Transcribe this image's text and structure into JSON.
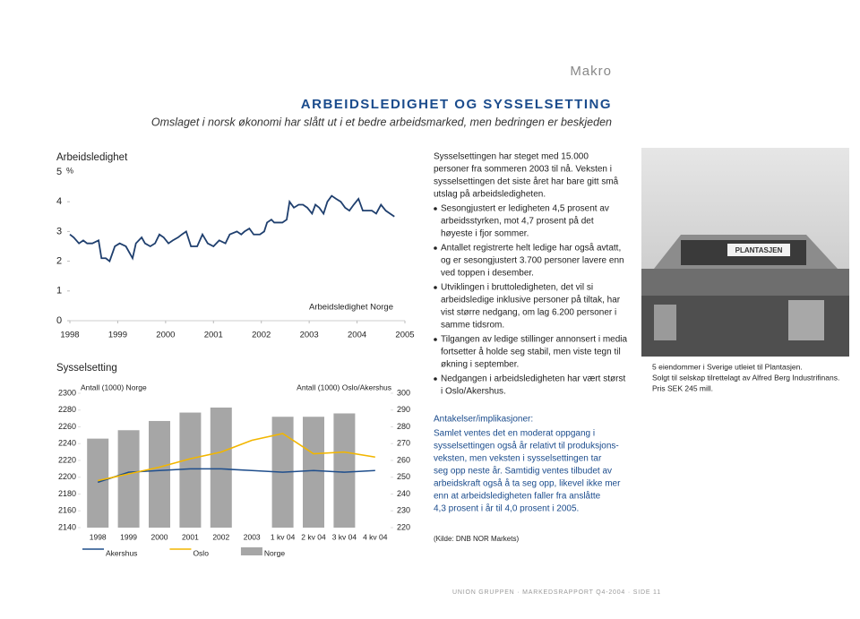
{
  "header": {
    "section": "Makro",
    "title": "ARBEIDSLEDIGHET OG SYSSELSETTING",
    "subtitle": "Omslaget i norsk økonomi har slått ut i et bedre arbeidsmarked, men bedringen er beskjeden"
  },
  "chart_data": [
    {
      "type": "line",
      "title": "Arbeidsledighet",
      "y_label": "%",
      "x": [
        1998.0,
        1998.08,
        1998.19,
        1998.28,
        1998.36,
        1998.47,
        1998.6,
        1998.66,
        1998.75,
        1998.83,
        1998.94,
        1999.04,
        1999.17,
        1999.31,
        1999.38,
        1999.5,
        1999.57,
        1999.68,
        1999.78,
        1999.87,
        1999.96,
        2000.06,
        2000.15,
        2000.26,
        2000.34,
        2000.43,
        2000.53,
        2000.66,
        2000.77,
        2000.88,
        2001.0,
        2001.12,
        2001.25,
        2001.34,
        2001.49,
        2001.58,
        2001.65,
        2001.75,
        2001.84,
        2001.97,
        2002.06,
        2002.12,
        2002.21,
        2002.27,
        2002.34,
        2002.44,
        2002.53,
        2002.59,
        2002.68,
        2002.78,
        2002.87,
        2002.96,
        2003.06,
        2003.13,
        2003.21,
        2003.3,
        2003.38,
        2003.47,
        2003.56,
        2003.66,
        2003.75,
        2003.84,
        2003.93,
        2004.03,
        2004.12,
        2004.21,
        2004.31,
        2004.4,
        2004.5,
        2004.6,
        2004.69,
        2004.78
      ],
      "series": [
        {
          "name": "Arbeidsledighet Norge",
          "color": "#1f3f6e",
          "values": [
            2.9,
            2.8,
            2.6,
            2.7,
            2.6,
            2.6,
            2.7,
            2.1,
            2.1,
            2.0,
            2.5,
            2.6,
            2.5,
            2.1,
            2.6,
            2.8,
            2.6,
            2.5,
            2.6,
            2.9,
            2.8,
            2.6,
            2.7,
            2.8,
            2.9,
            3.0,
            2.5,
            2.5,
            2.9,
            2.6,
            2.5,
            2.7,
            2.6,
            2.9,
            3.0,
            2.9,
            3.0,
            3.1,
            2.9,
            2.9,
            3.0,
            3.3,
            3.4,
            3.3,
            3.3,
            3.3,
            3.4,
            4.0,
            3.8,
            3.9,
            3.9,
            3.8,
            3.6,
            3.9,
            3.8,
            3.6,
            4.0,
            4.2,
            4.1,
            4.0,
            3.8,
            3.7,
            3.9,
            4.1,
            3.7,
            3.7,
            3.7,
            3.6,
            3.9,
            3.7,
            3.6,
            3.5
          ]
        }
      ],
      "xlim": [
        1998,
        2005
      ],
      "xticks": [
        1998,
        1999,
        2000,
        2001,
        2002,
        2003,
        2004,
        2005
      ],
      "ylim": [
        0,
        5
      ],
      "yticks": [
        0,
        1,
        2,
        3,
        4,
        5
      ]
    },
    {
      "type": "bar",
      "title": "Sysselsetting",
      "y_label": "Antall (1000) Norge",
      "y2_label": "Antall (1000) Oslo/Akershus",
      "categories": [
        "1998",
        "1999",
        "2000",
        "2001",
        "2002",
        "2003",
        "1 kv 04",
        "2 kv 04",
        "3 kv 04",
        "4 kv 04"
      ],
      "series": [
        {
          "name": "Akershus",
          "type": "line",
          "axis": "y2",
          "color": "#1f4e8c",
          "values": [
            247,
            253,
            254,
            255,
            255,
            254,
            253,
            254,
            253,
            254
          ]
        },
        {
          "name": "Oslo",
          "type": "line",
          "axis": "y2",
          "color": "#f2b600",
          "values": [
            248,
            252,
            256,
            261,
            265,
            272,
            276,
            264,
            265,
            262
          ]
        },
        {
          "name": "Norge",
          "type": "bar",
          "color": "#a6a6a6",
          "values": [
            2246,
            2256,
            2267,
            2277,
            2283,
            null,
            2272,
            2272,
            2276,
            null
          ]
        }
      ],
      "ylim": [
        2140,
        2300
      ],
      "yticks": [
        2140,
        2160,
        2180,
        2200,
        2220,
        2240,
        2260,
        2280,
        2300
      ],
      "y2lim": [
        220,
        300
      ],
      "y2ticks": [
        220,
        230,
        240,
        250,
        260,
        270,
        280,
        290,
        300
      ]
    }
  ],
  "text": {
    "intro": [
      "Sysselsettingen har steget med 15.000",
      "personer fra sommeren 2003 til nå. Veksten i",
      "sysselsettingen det siste året har bare gitt små",
      "utslag på arbeidsledigheten."
    ],
    "bullets": [
      [
        "Sesongjustert er ledigheten 4,5 prosent av",
        "arbeidsstyrken, mot 4,7 prosent på det",
        "høyeste i fjor sommer."
      ],
      [
        "Antallet registrerte helt ledige har også avtatt,",
        "og er sesongjustert 3.700 personer lavere enn",
        "ved toppen i desember."
      ],
      [
        "Utviklingen i bruttoledigheten, det vil si",
        "arbeidsledige inklusive personer på tiltak, har",
        "vist større nedgang, om lag 6.200 personer i",
        "samme tidsrom."
      ],
      [
        "Tilgangen av ledige stillinger annonsert i media",
        "fortsetter å holde seg stabil, men viste tegn til",
        "økning i september."
      ],
      [
        "Nedgangen i arbeidsledigheten har vært størst",
        "i Oslo/Akershus."
      ]
    ],
    "box_title": "Antakelser/implikasjoner:",
    "box_lines": [
      "Samlet ventes det en moderat oppgang i",
      "sysselsettingen også år relativt til produksjons-",
      "veksten, men veksten i sysselsettingen tar",
      "seg opp neste år. Samtidig ventes tilbudet av",
      "arbeidskraft også å ta seg opp, likevel ikke mer",
      "enn at arbeidsledigheten faller fra anslåtte",
      "4,3 prosent i år til 4,0 prosent i 2005."
    ],
    "source": "(Kilde: DNB NOR Markets)"
  },
  "photo": {
    "sign": "PLANTASJEN",
    "caption": [
      "5 eiendommer i Sverige utleiet til Plantasjen.",
      "Solgt til selskap tilrettelagt av Alfred Berg Industrifinans.",
      "Pris SEK 245 mill."
    ]
  },
  "footer": "UNION GRUPPEN · MARKEDSRAPPORT Q4-2004 · SIDE 11"
}
